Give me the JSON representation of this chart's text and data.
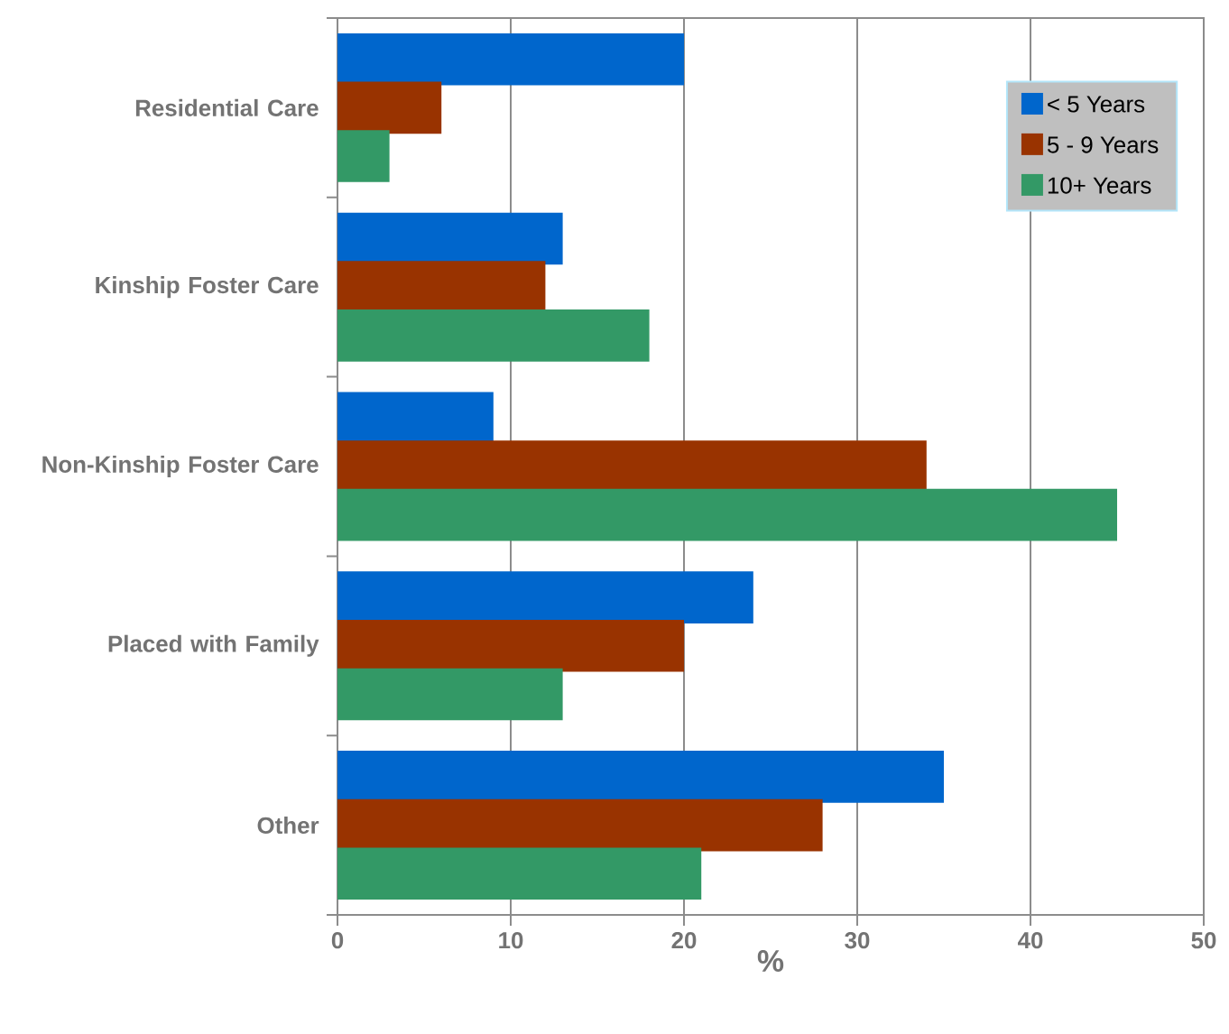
{
  "chart_data": {
    "type": "bar",
    "orientation": "horizontal",
    "xlabel": "%",
    "categories": [
      "Residential Care",
      "Kinship Foster Care",
      "Non-Kinship Foster Care",
      "Placed with Family",
      "Other"
    ],
    "series": [
      {
        "name": "< 5 Years",
        "color": "#0066cc",
        "values": [
          20,
          13,
          9,
          24,
          35
        ]
      },
      {
        "name": "5 - 9 Years",
        "color": "#993300",
        "values": [
          6,
          12,
          34,
          20,
          28
        ]
      },
      {
        "name": "10+ Years",
        "color": "#339966",
        "values": [
          3,
          18,
          45,
          13,
          21
        ]
      }
    ],
    "xlim": [
      0,
      50
    ],
    "xticks": [
      0,
      10,
      20,
      30,
      40,
      50
    ],
    "grid": "x",
    "legend": "top right"
  }
}
